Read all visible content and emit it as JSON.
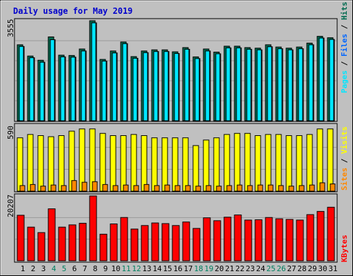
{
  "chart_data": {
    "type": "bar",
    "title": "Daily usage for May 2019",
    "colors": {
      "pages": "#00e6ff",
      "files": "#0066ff",
      "hits": "#006b50",
      "sites": "#ff8800",
      "visits": "#ffff00",
      "kbytes": "#ff0000",
      "weekend_label": "#008060",
      "weekday_label": "#000000",
      "background": "#c0c0c0",
      "title": "#0000cc"
    },
    "days": [
      "1",
      "2",
      "3",
      "4",
      "5",
      "6",
      "7",
      "8",
      "9",
      "10",
      "11",
      "12",
      "13",
      "14",
      "15",
      "16",
      "17",
      "18",
      "19",
      "20",
      "21",
      "22",
      "23",
      "24",
      "25",
      "26",
      "27",
      "28",
      "29",
      "30",
      "31"
    ],
    "weekend_days": [
      "4",
      "5",
      "11",
      "12",
      "18",
      "19",
      "25",
      "26"
    ],
    "panels": [
      {
        "id": "top",
        "ylabel": "3555",
        "ymax": 3555,
        "series": [
          {
            "name": "Hits",
            "values": [
              2700,
              2300,
              2150,
              2980,
              2330,
              2320,
              2550,
              3555,
              2180,
              2480,
              2800,
              2280,
              2480,
              2520,
              2520,
              2450,
              2600,
              2270,
              2550,
              2440,
              2650,
              2650,
              2600,
              2580,
              2700,
              2620,
              2580,
              2620,
              2760,
              3000,
              2950
            ]
          },
          {
            "name": "Files",
            "values": [
              2640,
              2240,
              2080,
              2880,
              2270,
              2260,
              2480,
              3480,
              2120,
              2410,
              2740,
              2220,
              2420,
              2460,
              2460,
              2390,
              2540,
              2210,
              2480,
              2380,
              2590,
              2590,
              2540,
              2520,
              2630,
              2560,
              2520,
              2560,
              2700,
              2940,
              2890
            ]
          },
          {
            "name": "Pages",
            "values": [
              2640,
              2240,
              2080,
              2880,
              2270,
              2260,
              2480,
              3480,
              2120,
              2410,
              2740,
              2220,
              2420,
              2460,
              2460,
              2390,
              2540,
              2210,
              2480,
              2380,
              2590,
              2590,
              2540,
              2520,
              2630,
              2560,
              2520,
              2560,
              2700,
              2940,
              2890
            ]
          }
        ],
        "side_labels": [
          "Pages",
          "/",
          "Files",
          "/",
          "Hits"
        ]
      },
      {
        "id": "mid",
        "ylabel": "590",
        "ymax": 590,
        "series": [
          {
            "name": "Visits",
            "values": [
              480,
              510,
              500,
              490,
              500,
              540,
              560,
              560,
              520,
              500,
              500,
              510,
              500,
              480,
              480,
              480,
              480,
              410,
              460,
              480,
              510,
              520,
              520,
              500,
              510,
              510,
              500,
              500,
              510,
              560,
              560
            ]
          },
          {
            "name": "Sites",
            "values": [
              50,
              60,
              45,
              55,
              50,
              95,
              80,
              85,
              60,
              50,
              55,
              50,
              60,
              50,
              55,
              50,
              50,
              45,
              50,
              45,
              50,
              55,
              50,
              55,
              55,
              50,
              45,
              50,
              55,
              75,
              65
            ]
          }
        ],
        "side_labels": [
          "Sites",
          "/",
          "Visits"
        ]
      },
      {
        "id": "bottom",
        "ylabel": "20207",
        "ymax": 20207,
        "series": [
          {
            "name": "KBytes",
            "values": [
              14200,
              10500,
              8800,
              16200,
              10500,
              11200,
              11700,
              20207,
              8300,
              11500,
              13500,
              9900,
              11000,
              11800,
              11600,
              11000,
              12100,
              10100,
              13400,
              12500,
              13600,
              14300,
              12700,
              12800,
              13500,
              13100,
              12900,
              12700,
              14400,
              15400,
              16700
            ]
          }
        ],
        "side_labels": [
          "KBytes"
        ]
      }
    ]
  }
}
